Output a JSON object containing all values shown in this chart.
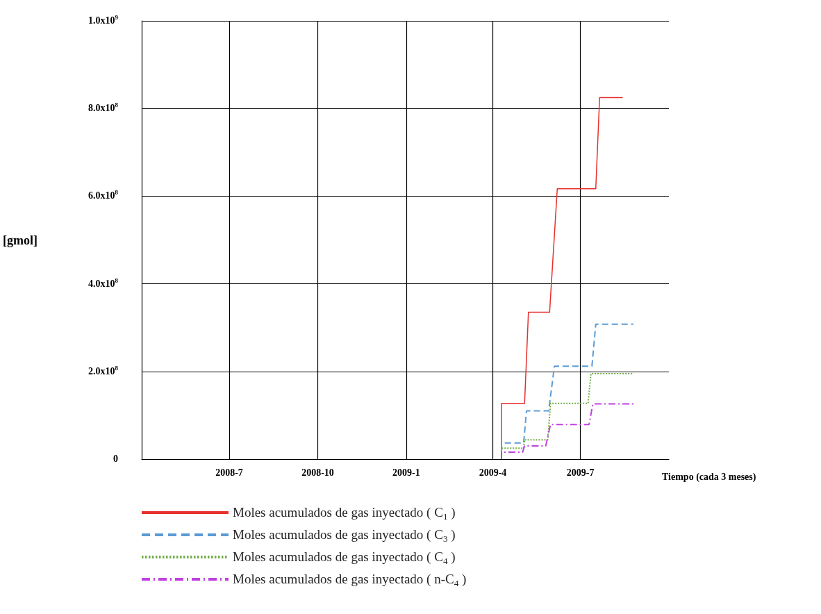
{
  "chart_data": {
    "type": "line",
    "xlabel": "Tiempo (cada 3 meses)",
    "ylabel": "[gmol]",
    "xlim": [
      "2008-04",
      "2009-10"
    ],
    "xticks": [
      {
        "value": "2008-07",
        "label": "2008-7"
      },
      {
        "value": "2008-10",
        "label": "2008-10"
      },
      {
        "value": "2009-01",
        "label": "2009-1"
      },
      {
        "value": "2009-04",
        "label": "2009-4"
      },
      {
        "value": "2009-07",
        "label": "2009-7"
      }
    ],
    "ylim": [
      0,
      1000000000
    ],
    "yticks": [
      0,
      {
        "value": 200000000,
        "label": "2.0x10$^{8}$"
      },
      {
        "value": 400000000,
        "label": "4.0x10$^{8}$"
      },
      {
        "value": 600000000,
        "label": "6.0x10$^{8}$"
      },
      {
        "value": 800000000,
        "label": "8.0x10$^{8}$"
      },
      {
        "value": 1000000000,
        "label": "1.0x10$^{9}$"
      }
    ],
    "grid": true,
    "legend": "bottom",
    "marker": "none",
    "series": [
      {
        "name": "Moles acumulados de gas inyectado ( C$_{1}$ )",
        "color": "#e8302c",
        "line_style": "solid",
        "x": [
          "2009-04-10",
          "2009-04-10",
          "2009-05-04",
          "2009-05-08",
          "2009-05-30",
          "2009-06-07",
          "2009-07-17",
          "2009-07-21",
          "2009-08-14"
        ],
        "values": [
          0,
          127000000,
          127000000,
          335000000,
          335000000,
          617000000,
          617000000,
          825000000,
          825000000
        ]
      },
      {
        "name": "Moles acumulados de gas inyectado ( C$_{3}$ )",
        "color": "#5b9bd5",
        "line_style": "dashed",
        "x": [
          "2009-04-10",
          "2009-04-10",
          "2009-05-03",
          "2009-05-06",
          "2009-05-29",
          "2009-06-04",
          "2009-07-13",
          "2009-07-17",
          "2009-08-25"
        ],
        "values": [
          0,
          37000000,
          37000000,
          110000000,
          110000000,
          212000000,
          212000000,
          308000000,
          308000000
        ]
      },
      {
        "name": "Moles acumulados de gas inyectado ( C$_{4}$ )",
        "color": "#70ad47",
        "line_style": "dotted",
        "x": [
          "2009-04-10",
          "2009-04-10",
          "2009-05-03",
          "2009-05-04",
          "2009-05-28",
          "2009-05-31",
          "2009-07-09",
          "2009-07-12",
          "2009-08-25"
        ],
        "values": [
          0,
          25000000,
          25000000,
          44000000,
          44000000,
          127000000,
          127000000,
          195000000,
          195000000
        ]
      },
      {
        "name": "Moles acumulados de gas inyectado ( n-C$_{4}$ )",
        "color": "#c040e0",
        "line_style": "dashdot",
        "x": [
          "2009-04-10",
          "2009-04-10",
          "2009-05-02",
          "2009-05-04",
          "2009-05-26",
          "2009-05-31",
          "2009-07-10",
          "2009-07-14",
          "2009-08-27"
        ],
        "values": [
          0,
          16000000,
          16000000,
          30000000,
          30000000,
          79000000,
          79000000,
          126000000,
          126000000
        ]
      }
    ]
  }
}
